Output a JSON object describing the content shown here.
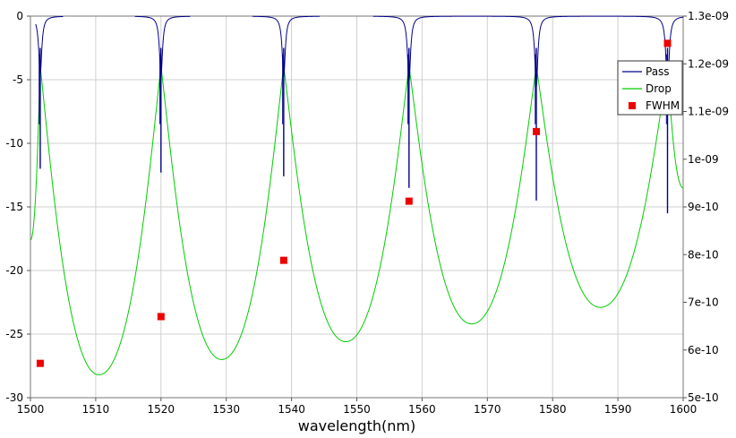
{
  "chart_data": {
    "type": "line",
    "xlabel": "wavelength(nm)",
    "ylabel": "",
    "y2label": "",
    "title": "",
    "xlim": [
      1500,
      1600
    ],
    "ylim": [
      -30,
      0
    ],
    "y2lim": [
      5e-10,
      1.3e-09
    ],
    "grid": true,
    "legend_position": "top-right",
    "x_ticks": [
      "1500",
      "1510",
      "1520",
      "1530",
      "1540",
      "1550",
      "1560",
      "1570",
      "1580",
      "1590",
      "1600"
    ],
    "y_ticks": [
      "0",
      "-5",
      "-10",
      "-15",
      "-20",
      "-25",
      "-30"
    ],
    "y2_ticks": [
      "1.3e-09",
      "1.2e-09",
      "1.1e-09",
      "1e-09",
      "9e-10",
      "8e-10",
      "7e-10",
      "6e-10",
      "5e-10"
    ],
    "resonances": [
      {
        "center": 1501.5,
        "pass_min_db": -12,
        "drop_peak_db": -4
      },
      {
        "center": 1520.0,
        "pass_min_db": -12.3,
        "drop_peak_db": -4
      },
      {
        "center": 1538.8,
        "pass_min_db": -12.6,
        "drop_peak_db": -4
      },
      {
        "center": 1558.0,
        "pass_min_db": -13.5,
        "drop_peak_db": -4
      },
      {
        "center": 1577.5,
        "pass_min_db": -14.5,
        "drop_peak_db": -4
      },
      {
        "center": 1597.6,
        "pass_min_db": -15.5,
        "drop_peak_db": -4
      }
    ],
    "drop_valleys": [
      {
        "x": 1510.5,
        "y": -28.2
      },
      {
        "x": 1529.3,
        "y": -27.0
      },
      {
        "x": 1548.3,
        "y": -25.6
      },
      {
        "x": 1567.6,
        "y": -24.2
      },
      {
        "x": 1587.3,
        "y": -22.9
      }
    ],
    "pass_segments": [
      [
        1500.8,
        1505.0
      ],
      [
        1516.0,
        1524.5
      ],
      [
        1534.0,
        1544.3
      ],
      [
        1552.5,
        1600.0
      ]
    ],
    "series": [
      {
        "name": "Pass",
        "color": "#00008b",
        "axis": "left",
        "kind": "line"
      },
      {
        "name": "Drop",
        "color": "#00cc00",
        "axis": "left",
        "kind": "line"
      },
      {
        "name": "FWHM",
        "color": "#ee0000",
        "axis": "right",
        "kind": "scatter",
        "x": [
          1501.5,
          1520.0,
          1538.8,
          1558.0,
          1577.5,
          1597.6
        ],
        "y": [
          5.72e-10,
          6.7e-10,
          7.88e-10,
          9.12e-10,
          1.058e-09,
          1.243e-09
        ]
      }
    ]
  }
}
